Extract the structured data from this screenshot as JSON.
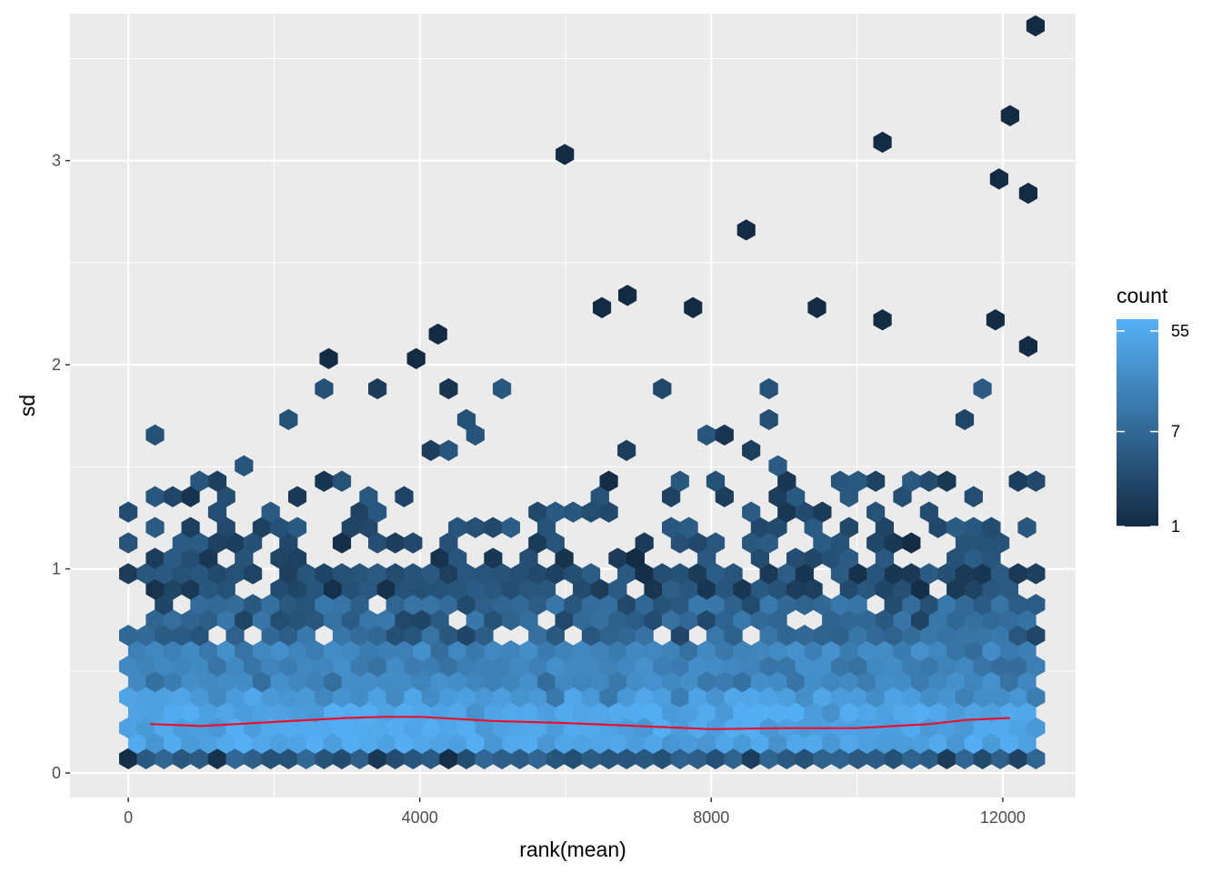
{
  "chart_data": {
    "type": "hexbin",
    "xlabel": "rank(mean)",
    "ylabel": "sd",
    "xlim": [
      -800,
      13000
    ],
    "ylim": [
      -0.12,
      3.72
    ],
    "x_ticks": [
      0,
      4000,
      8000,
      12000
    ],
    "y_ticks": [
      0,
      1,
      2,
      3
    ],
    "grid": true,
    "legend": {
      "title": "count",
      "position": "right",
      "scale": "log",
      "min": 1,
      "max": 70,
      "ticks": [
        55,
        7,
        1
      ],
      "color_low": "#132B43",
      "color_high": "#56B1F7"
    },
    "trend_line": {
      "color": "#e8112d",
      "x": [
        300,
        1000,
        2000,
        3000,
        3500,
        4000,
        5000,
        6000,
        7000,
        8000,
        9000,
        10000,
        11000,
        11500,
        12100
      ],
      "y": [
        0.24,
        0.23,
        0.25,
        0.27,
        0.275,
        0.275,
        0.255,
        0.245,
        0.23,
        0.215,
        0.22,
        0.22,
        0.24,
        0.26,
        0.27
      ]
    },
    "outliers": [
      {
        "x": 12450,
        "y": 3.66
      },
      {
        "x": 12100,
        "y": 3.22
      },
      {
        "x": 10350,
        "y": 3.09
      },
      {
        "x": 5990,
        "y": 3.03
      },
      {
        "x": 11950,
        "y": 2.91
      },
      {
        "x": 12350,
        "y": 2.84
      },
      {
        "x": 8480,
        "y": 2.66
      },
      {
        "x": 6850,
        "y": 2.34
      },
      {
        "x": 6500,
        "y": 2.28
      },
      {
        "x": 7750,
        "y": 2.28
      },
      {
        "x": 9450,
        "y": 2.28
      },
      {
        "x": 10350,
        "y": 2.22
      },
      {
        "x": 11900,
        "y": 2.22
      },
      {
        "x": 4250,
        "y": 2.15
      },
      {
        "x": 12350,
        "y": 2.09
      },
      {
        "x": 2750,
        "y": 2.03
      },
      {
        "x": 3950,
        "y": 2.03
      }
    ]
  }
}
